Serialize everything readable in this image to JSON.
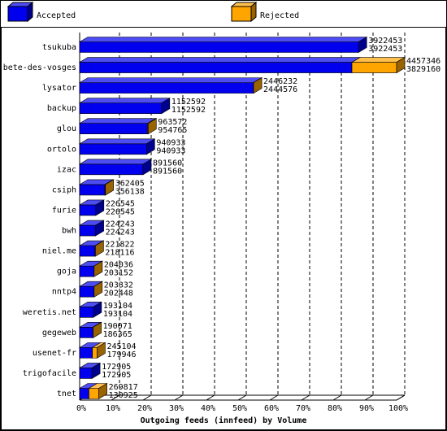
{
  "chart_data": {
    "type": "bar",
    "orientation": "horizontal",
    "stacked": true,
    "three_d": true,
    "xlabel": "Outgoing feeds (innfeed) by Volume",
    "categories": [
      "tsukuba",
      "bete-des-vosges",
      "lysator",
      "backup",
      "glou",
      "ortolo",
      "izac",
      "csiph",
      "furie",
      "bwh",
      "niel.me",
      "goja",
      "nntp4",
      "weretis.net",
      "gegeweb",
      "usenet-fr",
      "trigofacile",
      "tnet"
    ],
    "series": [
      {
        "name": "Accepted",
        "color": "#0000ee",
        "values": [
          3922453,
          3829160,
          2444576,
          1152592,
          954765,
          940933,
          891560,
          356138,
          226545,
          224243,
          218116,
          203152,
          202448,
          193104,
          186365,
          179946,
          172905,
          130925
        ]
      },
      {
        "name": "Rejected",
        "color": "#ffa500",
        "values": [
          0,
          628186,
          1656,
          0,
          8807,
          0,
          0,
          6267,
          0,
          0,
          3706,
          884,
          884,
          0,
          3706,
          65158,
          0,
          138892
        ]
      }
    ],
    "totals": [
      3922453,
      4457346,
      2446232,
      1152592,
      963572,
      940933,
      891560,
      362405,
      226545,
      224243,
      221822,
      204036,
      203332,
      193104,
      190071,
      245104,
      172905,
      269817
    ],
    "xlim": [
      0,
      4457346
    ],
    "xticks": [
      {
        "value": 0,
        "label": "0%"
      },
      {
        "value": 445734.6,
        "label": "10%"
      },
      {
        "value": 891469.2,
        "label": "20%"
      },
      {
        "value": 1337203.8,
        "label": "30%"
      },
      {
        "value": 1782938.4,
        "label": "40%"
      },
      {
        "value": 2228673,
        "label": "50%"
      },
      {
        "value": 2674407.6,
        "label": "60%"
      },
      {
        "value": 3120142.2,
        "label": "70%"
      },
      {
        "value": 3565876.8,
        "label": "80%"
      },
      {
        "value": 4011611.4,
        "label": "90%"
      },
      {
        "value": 4457346,
        "label": "100%"
      }
    ],
    "grid": true
  }
}
